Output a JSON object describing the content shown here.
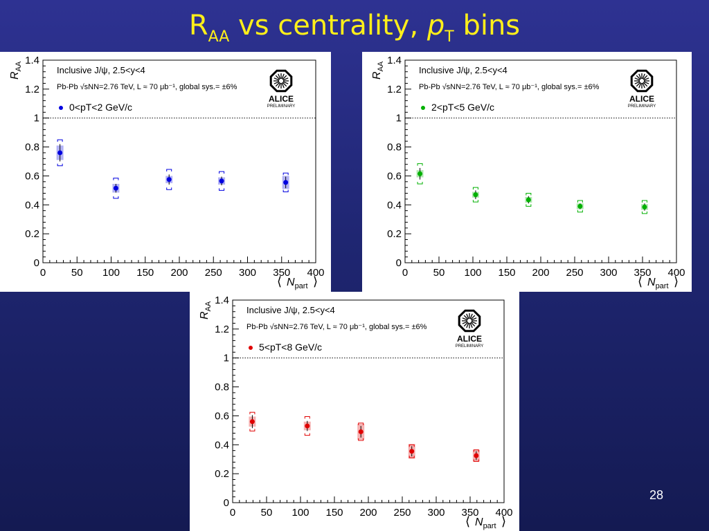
{
  "slide": {
    "title_main": "R",
    "title_sub": "AA",
    "title_mid": " vs centrality, ",
    "title_pt": "p",
    "title_pt_sub": "T",
    "title_end": " bins",
    "page_number": "28"
  },
  "colors": {
    "background_top": "#2e3292",
    "background_bottom": "#141a52",
    "title": "#ffef1a",
    "series_blue": "#0000e0",
    "series_green": "#00b000",
    "series_red": "#e00000"
  },
  "chart_data": [
    {
      "type": "scatter",
      "ylabel_main": "R",
      "ylabel_sub": "AA",
      "xlabel_main": "N",
      "xlabel_sub": "part",
      "xlim": [
        0,
        400
      ],
      "ylim": [
        0,
        1.4
      ],
      "xticks": [
        "0",
        "50",
        "100",
        "150",
        "200",
        "250",
        "300",
        "350",
        "400"
      ],
      "yticks": [
        "0",
        "0.2",
        "0.4",
        "0.6",
        "0.8",
        "1",
        "1.2",
        "1.4"
      ],
      "xtick_values": [
        0,
        50,
        100,
        150,
        200,
        250,
        300,
        350,
        400
      ],
      "ytick_values": [
        0,
        0.2,
        0.4,
        0.6,
        0.8,
        1,
        1.2,
        1.4
      ],
      "reference_line": 1,
      "legend_line1": "Inclusive J/ψ, 2.5<y<4",
      "legend_line2": "Pb-Pb √sNN=2.76 TeV, L ≈ 70 μb⁻¹, global sys.= ±6%",
      "series_label": "0<pT<2 GeV/c",
      "logo_text": "ALICE",
      "logo_sub": "PRELIMINARY",
      "color": "#0000e0",
      "points": [
        {
          "x": 25,
          "y": 0.76,
          "stat": 0.06,
          "sys": 0.09,
          "box": 0.05
        },
        {
          "x": 107,
          "y": 0.515,
          "stat": 0.03,
          "sys": 0.07,
          "box": 0.03
        },
        {
          "x": 185,
          "y": 0.575,
          "stat": 0.035,
          "sys": 0.07,
          "box": 0.025
        },
        {
          "x": 262,
          "y": 0.565,
          "stat": 0.03,
          "sys": 0.065,
          "box": 0.025
        },
        {
          "x": 356,
          "y": 0.555,
          "stat": 0.04,
          "sys": 0.065,
          "box": 0.045
        }
      ]
    },
    {
      "type": "scatter",
      "ylabel_main": "R",
      "ylabel_sub": "AA",
      "xlabel_main": "N",
      "xlabel_sub": "part",
      "xlim": [
        0,
        400
      ],
      "ylim": [
        0,
        1.4
      ],
      "xticks": [
        "0",
        "50",
        "100",
        "150",
        "200",
        "250",
        "300",
        "350",
        "400"
      ],
      "yticks": [
        "0",
        "0.2",
        "0.4",
        "0.6",
        "0.8",
        "1",
        "1.2",
        "1.4"
      ],
      "xtick_values": [
        0,
        50,
        100,
        150,
        200,
        250,
        300,
        350,
        400
      ],
      "ytick_values": [
        0,
        0.2,
        0.4,
        0.6,
        0.8,
        1,
        1.2,
        1.4
      ],
      "reference_line": 1,
      "legend_line1": "Inclusive J/ψ, 2.5<y<4",
      "legend_line2": "Pb-Pb √sNN=2.76 TeV, L ≈ 70 μb⁻¹, global sys.= ±6%",
      "series_label": "2<pT<5 GeV/c",
      "logo_text": "ALICE",
      "logo_sub": "PRELIMINARY",
      "color": "#00b000",
      "points": [
        {
          "x": 22,
          "y": 0.615,
          "stat": 0.04,
          "sys": 0.07,
          "box": 0.025
        },
        {
          "x": 104,
          "y": 0.47,
          "stat": 0.03,
          "sys": 0.05,
          "box": 0.02
        },
        {
          "x": 182,
          "y": 0.435,
          "stat": 0.025,
          "sys": 0.045,
          "box": 0.02
        },
        {
          "x": 258,
          "y": 0.39,
          "stat": 0.02,
          "sys": 0.04,
          "box": 0.02
        },
        {
          "x": 353,
          "y": 0.385,
          "stat": 0.025,
          "sys": 0.045,
          "box": 0.02
        }
      ]
    },
    {
      "type": "scatter",
      "ylabel_main": "R",
      "ylabel_sub": "AA",
      "xlabel_main": "N",
      "xlabel_sub": "part",
      "xlim": [
        0,
        400
      ],
      "ylim": [
        0,
        1.4
      ],
      "xticks": [
        "0",
        "50",
        "100",
        "150",
        "200",
        "250",
        "300",
        "350",
        "400"
      ],
      "yticks": [
        "0",
        "0.2",
        "0.4",
        "0.6",
        "0.8",
        "1",
        "1.2",
        "1.4"
      ],
      "xtick_values": [
        0,
        50,
        100,
        150,
        200,
        250,
        300,
        350,
        400
      ],
      "ytick_values": [
        0,
        0.2,
        0.4,
        0.6,
        0.8,
        1,
        1.2,
        1.4
      ],
      "reference_line": 1,
      "legend_line1": "Inclusive J/ψ, 2.5<y<4",
      "legend_line2": "Pb-Pb √sNN=2.76 TeV, L ≈ 70 μb⁻¹, global sys.= ±6%",
      "series_label": "5<pT<8 GeV/c",
      "logo_text": "ALICE",
      "logo_sub": "PRELIMINARY",
      "color": "#e00000",
      "points": [
        {
          "x": 29,
          "y": 0.56,
          "stat": 0.045,
          "sys": 0.065,
          "box": 0.035
        },
        {
          "x": 110,
          "y": 0.53,
          "stat": 0.035,
          "sys": 0.065,
          "box": 0.03
        },
        {
          "x": 189,
          "y": 0.49,
          "stat": 0.04,
          "sys": 0.06,
          "box": 0.055
        },
        {
          "x": 264,
          "y": 0.355,
          "stat": 0.035,
          "sys": 0.045,
          "box": 0.05
        },
        {
          "x": 359,
          "y": 0.325,
          "stat": 0.03,
          "sys": 0.04,
          "box": 0.04
        }
      ]
    }
  ]
}
